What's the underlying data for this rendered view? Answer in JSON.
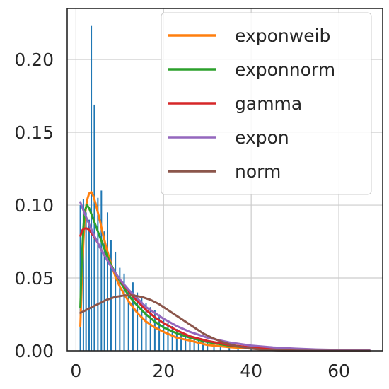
{
  "chart_data": {
    "type": "bar",
    "title": "",
    "xlabel": "",
    "ylabel": "",
    "xlim": [
      -2,
      70
    ],
    "ylim": [
      0,
      0.235
    ],
    "grid": true,
    "legend_placement": "upper-right",
    "x_ticks": [
      0,
      20,
      40,
      60
    ],
    "x_tick_labels": [
      "0",
      "20",
      "40",
      "60"
    ],
    "y_ticks": [
      0.0,
      0.05,
      0.1,
      0.15,
      0.2
    ],
    "y_tick_labels": [
      "0.00",
      "0.05",
      "0.10",
      "0.15",
      "0.20"
    ],
    "histogram": {
      "color": "#1f77b4",
      "bins": [
        {
          "x": 1.0,
          "y": 0.1
        },
        {
          "x": 1.7,
          "y": 0.104
        },
        {
          "x": 2.3,
          "y": 0.095
        },
        {
          "x": 3.0,
          "y": 0.09
        },
        {
          "x": 3.5,
          "y": 0.223
        },
        {
          "x": 4.2,
          "y": 0.169
        },
        {
          "x": 5.0,
          "y": 0.105
        },
        {
          "x": 5.8,
          "y": 0.11
        },
        {
          "x": 6.5,
          "y": 0.082
        },
        {
          "x": 7.2,
          "y": 0.095
        },
        {
          "x": 8.0,
          "y": 0.076
        },
        {
          "x": 9.0,
          "y": 0.068
        },
        {
          "x": 10.0,
          "y": 0.057
        },
        {
          "x": 11.0,
          "y": 0.053
        },
        {
          "x": 12.0,
          "y": 0.043
        },
        {
          "x": 13.0,
          "y": 0.047
        },
        {
          "x": 14.0,
          "y": 0.04
        },
        {
          "x": 15.0,
          "y": 0.037
        },
        {
          "x": 16.0,
          "y": 0.033
        },
        {
          "x": 17.0,
          "y": 0.03
        },
        {
          "x": 18.0,
          "y": 0.028
        },
        {
          "x": 19.0,
          "y": 0.025
        },
        {
          "x": 20.0,
          "y": 0.022
        },
        {
          "x": 21.0,
          "y": 0.019
        },
        {
          "x": 22.0,
          "y": 0.017
        },
        {
          "x": 23.0,
          "y": 0.015
        },
        {
          "x": 24.0,
          "y": 0.013
        },
        {
          "x": 25.0,
          "y": 0.012
        },
        {
          "x": 26.0,
          "y": 0.01
        },
        {
          "x": 27.0,
          "y": 0.009
        },
        {
          "x": 28.0,
          "y": 0.008
        },
        {
          "x": 29.0,
          "y": 0.007
        },
        {
          "x": 30.0,
          "y": 0.006
        },
        {
          "x": 31.5,
          "y": 0.005
        },
        {
          "x": 33.0,
          "y": 0.004
        },
        {
          "x": 35.0,
          "y": 0.003
        },
        {
          "x": 37.0,
          "y": 0.002
        },
        {
          "x": 40.0,
          "y": 0.002
        },
        {
          "x": 43.0,
          "y": 0.001
        },
        {
          "x": 47.0,
          "y": 0.001
        }
      ]
    },
    "series": [
      {
        "name": "exponweib",
        "color": "#ff7f0e",
        "x": [
          1.0,
          1.3,
          1.7,
          2.0,
          2.5,
          3.0,
          3.5,
          4.0,
          4.5,
          5.0,
          5.5,
          6.0,
          7.0,
          8.0,
          9.0,
          10.0,
          12.0,
          14.0,
          16.0,
          18.0,
          20.0,
          23.0,
          26.0,
          30.0,
          35.0,
          40.0,
          45.0,
          50.0,
          55.0,
          60.0,
          67.0
        ],
        "y": [
          0.017,
          0.045,
          0.075,
          0.092,
          0.103,
          0.108,
          0.109,
          0.106,
          0.101,
          0.095,
          0.089,
          0.082,
          0.07,
          0.06,
          0.051,
          0.044,
          0.034,
          0.026,
          0.02,
          0.016,
          0.013,
          0.009,
          0.007,
          0.004,
          0.0025,
          0.0015,
          0.0008,
          0.0004,
          0.0002,
          0.0001,
          0.0
        ]
      },
      {
        "name": "exponnorm",
        "color": "#2ca02c",
        "x": [
          1.0,
          1.3,
          1.7,
          2.0,
          2.5,
          3.0,
          4.0,
          5.0,
          6.0,
          7.0,
          8.0,
          10.0,
          12.0,
          14.0,
          16.0,
          18.0,
          20.0,
          23.0,
          26.0,
          30.0,
          35.0,
          40.0,
          45.0,
          50.0,
          55.0,
          60.0,
          67.0
        ],
        "y": [
          0.03,
          0.06,
          0.085,
          0.096,
          0.1,
          0.098,
          0.09,
          0.082,
          0.074,
          0.066,
          0.059,
          0.048,
          0.038,
          0.031,
          0.025,
          0.02,
          0.016,
          0.012,
          0.009,
          0.006,
          0.0035,
          0.002,
          0.0011,
          0.0006,
          0.0003,
          0.0002,
          0.0001
        ]
      },
      {
        "name": "gamma",
        "color": "#d62728",
        "x": [
          1.0,
          1.5,
          2.0,
          2.5,
          3.0,
          4.0,
          5.0,
          6.0,
          7.0,
          8.0,
          10.0,
          12.0,
          14.0,
          16.0,
          18.0,
          20.0,
          23.0,
          26.0,
          30.0,
          35.0,
          40.0,
          45.0,
          50.0,
          55.0,
          60.0,
          67.0
        ],
        "y": [
          0.079,
          0.083,
          0.084,
          0.084,
          0.083,
          0.079,
          0.074,
          0.068,
          0.063,
          0.058,
          0.049,
          0.041,
          0.034,
          0.028,
          0.023,
          0.019,
          0.014,
          0.01,
          0.0068,
          0.004,
          0.0023,
          0.0013,
          0.0007,
          0.0004,
          0.0002,
          0.0001
        ]
      },
      {
        "name": "expon",
        "color": "#9467bd",
        "x": [
          1.0,
          2.0,
          3.0,
          4.0,
          5.0,
          6.0,
          8.0,
          10.0,
          12.0,
          14.0,
          16.0,
          18.0,
          20.0,
          23.0,
          26.0,
          30.0,
          35.0,
          40.0,
          45.0,
          50.0,
          55.0,
          60.0,
          67.0
        ],
        "y": [
          0.102,
          0.094,
          0.087,
          0.08,
          0.074,
          0.068,
          0.058,
          0.049,
          0.042,
          0.036,
          0.03,
          0.026,
          0.022,
          0.017,
          0.013,
          0.009,
          0.0058,
          0.0036,
          0.0023,
          0.0015,
          0.0009,
          0.0006,
          0.0003
        ]
      },
      {
        "name": "norm",
        "color": "#8c564b",
        "x": [
          1.0,
          3.0,
          5.0,
          7.0,
          9.0,
          11.0,
          13.0,
          15.0,
          17.0,
          19.0,
          21.0,
          23.0,
          25.0,
          27.0,
          29.0,
          31.0,
          33.0,
          35.0,
          37.0,
          40.0,
          43.0,
          46.0,
          50.0,
          55.0,
          60.0,
          67.0
        ],
        "y": [
          0.026,
          0.029,
          0.032,
          0.035,
          0.037,
          0.038,
          0.038,
          0.037,
          0.035,
          0.032,
          0.028,
          0.024,
          0.02,
          0.016,
          0.012,
          0.009,
          0.0065,
          0.0045,
          0.003,
          0.0015,
          0.0007,
          0.0003,
          0.0001,
          0.0,
          0.0,
          0.0
        ]
      }
    ]
  }
}
